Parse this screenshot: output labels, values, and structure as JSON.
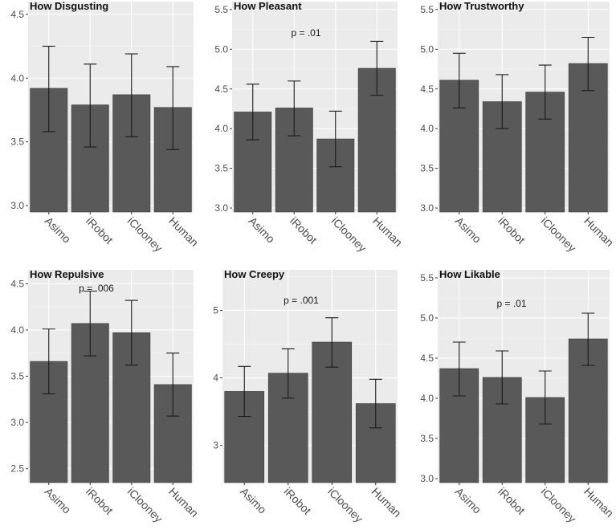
{
  "colors": {
    "panel_bg": "#ebebeb",
    "grid_major": "#ffffff",
    "grid_minor": "#f5f5f5",
    "bar_fill": "#595959",
    "bar_stroke": "#3a3a3a",
    "errorbar": "#1a1a1a"
  },
  "chart_data": [
    {
      "type": "bar",
      "title": "How Disgusting",
      "categories": [
        "Asimo",
        "iRobot",
        "iClooney",
        "Human"
      ],
      "values": [
        3.92,
        3.79,
        3.87,
        3.77
      ],
      "error_low": [
        3.58,
        3.46,
        3.54,
        3.44
      ],
      "error_high": [
        4.25,
        4.11,
        4.19,
        4.09
      ],
      "ylim": [
        2.95,
        4.6
      ],
      "yticks": [
        3.0,
        3.5,
        4.0,
        4.5
      ],
      "ytick_labels": [
        "3.0",
        "3.5",
        "4.0",
        "4.5"
      ],
      "annotation": null
    },
    {
      "type": "bar",
      "title": "How Pleasant",
      "categories": [
        "Asimo",
        "iRobot",
        "iClooney",
        "Human"
      ],
      "values": [
        4.21,
        4.26,
        3.87,
        4.76
      ],
      "error_low": [
        3.86,
        3.91,
        3.52,
        4.42
      ],
      "error_high": [
        4.56,
        4.6,
        4.22,
        5.1
      ],
      "ylim": [
        2.95,
        5.6
      ],
      "yticks": [
        3.0,
        3.5,
        4.0,
        4.5,
        5.0,
        5.5
      ],
      "ytick_labels": [
        "3.0",
        "3.5",
        "4.0",
        "4.5",
        "5.0",
        "5.5"
      ],
      "annotation": "p = .01"
    },
    {
      "type": "bar",
      "title": "How Trustworthy",
      "categories": [
        "Asimo",
        "iRobot",
        "iClooney",
        "Human"
      ],
      "values": [
        4.61,
        4.34,
        4.46,
        4.82
      ],
      "error_low": [
        4.26,
        4.0,
        4.12,
        4.48
      ],
      "error_high": [
        4.95,
        4.68,
        4.8,
        5.15
      ],
      "ylim": [
        2.95,
        5.6
      ],
      "yticks": [
        3.0,
        3.5,
        4.0,
        4.5,
        5.0,
        5.5
      ],
      "ytick_labels": [
        "3.0",
        "3.5",
        "4.0",
        "4.5",
        "5.0",
        "5.5"
      ],
      "annotation": null
    },
    {
      "type": "bar",
      "title": "How Repulsive",
      "categories": [
        "Asimo",
        "iRobot",
        "iClooney",
        "Human"
      ],
      "values": [
        3.66,
        4.07,
        3.97,
        3.41
      ],
      "error_low": [
        3.31,
        3.72,
        3.62,
        3.07
      ],
      "error_high": [
        4.01,
        4.42,
        4.32,
        3.75
      ],
      "ylim": [
        2.35,
        4.65
      ],
      "yticks": [
        2.5,
        3.0,
        3.5,
        4.0,
        4.5
      ],
      "ytick_labels": [
        "2.5",
        "3.0",
        "3.5",
        "4.0",
        "4.5"
      ],
      "annotation": "p = .006"
    },
    {
      "type": "bar",
      "title": "How Creepy",
      "categories": [
        "Asimo",
        "iRobot",
        "iClooney",
        "Human"
      ],
      "values": [
        3.8,
        4.07,
        4.53,
        3.62
      ],
      "error_low": [
        3.43,
        3.7,
        4.16,
        3.26
      ],
      "error_high": [
        4.17,
        4.43,
        4.89,
        3.98
      ],
      "ylim": [
        2.45,
        5.6
      ],
      "yticks": [
        3,
        4,
        5
      ],
      "ytick_labels": [
        "3",
        "4",
        "5"
      ],
      "annotation": "p = .001"
    },
    {
      "type": "bar",
      "title": "How Likable",
      "categories": [
        "Asimo",
        "iRobot",
        "iClooney",
        "Human"
      ],
      "values": [
        4.37,
        4.26,
        4.01,
        4.74
      ],
      "error_low": [
        4.03,
        3.93,
        3.68,
        4.41
      ],
      "error_high": [
        4.7,
        4.59,
        4.34,
        5.06
      ],
      "ylim": [
        2.95,
        5.6
      ],
      "yticks": [
        3.0,
        3.5,
        4.0,
        4.5,
        5.0,
        5.5
      ],
      "ytick_labels": [
        "3.0",
        "3.5",
        "4.0",
        "4.5",
        "5.0",
        "5.5"
      ],
      "annotation": "p = .01"
    }
  ]
}
